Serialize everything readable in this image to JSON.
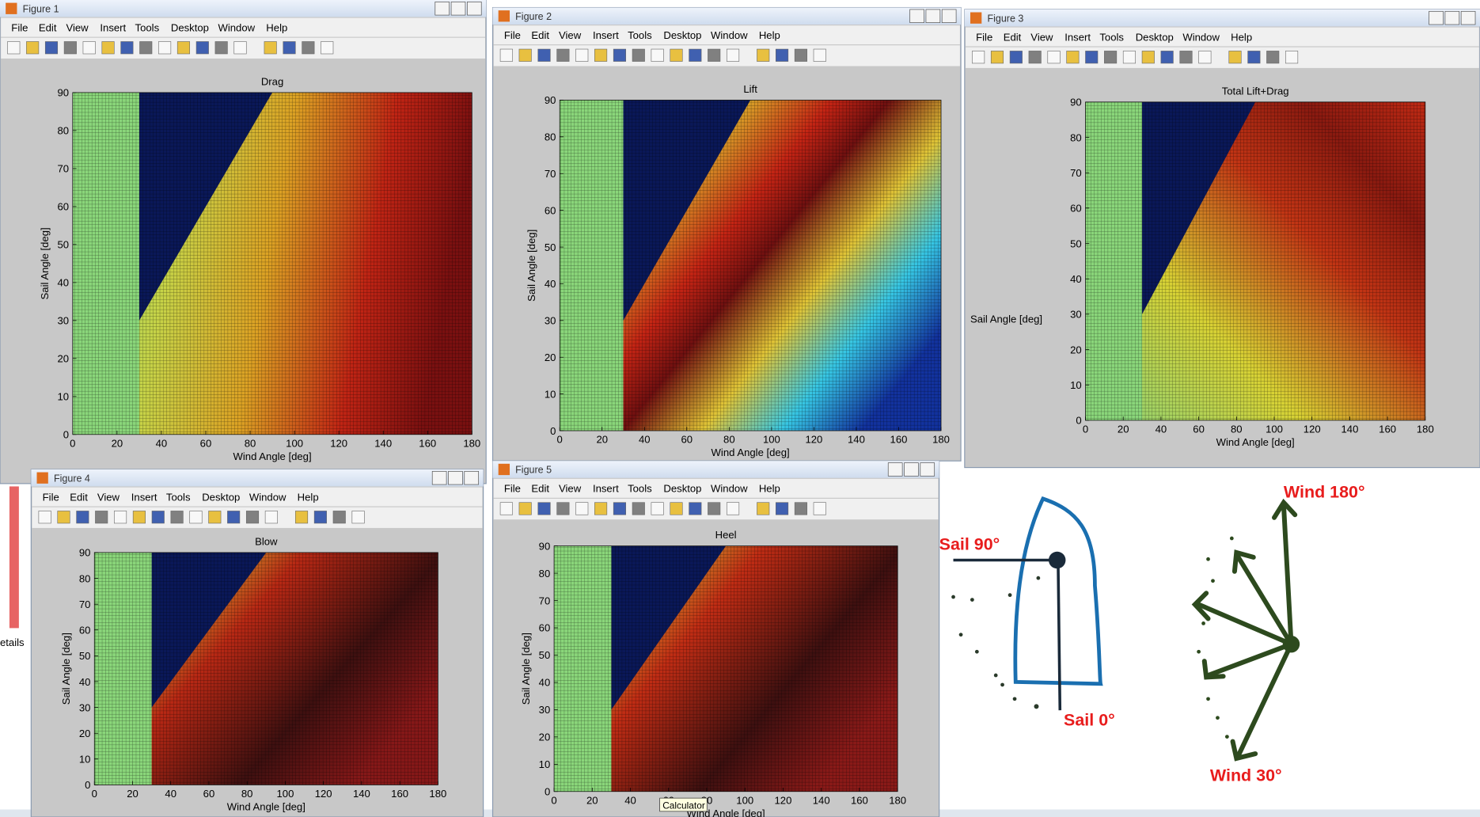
{
  "windows": [
    {
      "title": "Figure 1",
      "menu": [
        "File",
        "Edit",
        "View",
        "Insert",
        "Tools",
        "Desktop",
        "Window",
        "Help"
      ],
      "plot": {
        "title": "Drag",
        "xlabel": "Wind Angle [deg]",
        "ylabel": "Sail Angle [deg]",
        "xticks": [
          0,
          20,
          40,
          60,
          80,
          100,
          120,
          140,
          160,
          180
        ],
        "yticks": [
          0,
          10,
          20,
          30,
          40,
          50,
          60,
          70,
          80,
          90
        ]
      }
    },
    {
      "title": "Figure 2",
      "menu": [
        "File",
        "Edit",
        "View",
        "Insert",
        "Tools",
        "Desktop",
        "Window",
        "Help"
      ],
      "plot": {
        "title": "Lift",
        "xlabel": "Wind Angle [deg]",
        "ylabel": "Sail Angle [deg]",
        "xticks": [
          0,
          20,
          40,
          60,
          80,
          100,
          120,
          140,
          160,
          180
        ],
        "yticks": [
          0,
          10,
          20,
          30,
          40,
          50,
          60,
          70,
          80,
          90
        ]
      }
    },
    {
      "title": "Figure 3",
      "menu": [
        "File",
        "Edit",
        "View",
        "Insert",
        "Tools",
        "Desktop",
        "Window",
        "Help"
      ],
      "plot": {
        "title": "Total Lift+Drag",
        "xlabel": "Wind Angle [deg]",
        "ylabel": "Sail Angle [deg]",
        "xticks": [
          0,
          20,
          40,
          60,
          80,
          100,
          120,
          140,
          160,
          180
        ],
        "yticks": [
          0,
          10,
          20,
          30,
          40,
          50,
          60,
          70,
          80,
          90
        ]
      }
    },
    {
      "title": "Figure 4",
      "menu": [
        "File",
        "Edit",
        "View",
        "Insert",
        "Tools",
        "Desktop",
        "Window",
        "Help"
      ],
      "plot": {
        "title": "Blow",
        "xlabel": "Wind Angle [deg]",
        "ylabel": "Sail Angle [deg]",
        "xticks": [
          0,
          20,
          40,
          60,
          80,
          100,
          120,
          140,
          160,
          180
        ],
        "yticks": [
          0,
          10,
          20,
          30,
          40,
          50,
          60,
          70,
          80,
          90
        ]
      }
    },
    {
      "title": "Figure 5",
      "menu": [
        "File",
        "Edit",
        "View",
        "Insert",
        "Tools",
        "Desktop",
        "Window",
        "Help"
      ],
      "plot": {
        "title": "Heel",
        "xlabel": "Wind Angle [deg]",
        "ylabel": "Sail Angle [deg]",
        "xticks": [
          0,
          20,
          40,
          60,
          80,
          100,
          120,
          140,
          160,
          180
        ],
        "yticks": [
          0,
          10,
          20,
          30,
          40,
          50,
          60,
          70,
          80,
          90
        ]
      }
    }
  ],
  "sketch": {
    "sail_90": "Sail 90°",
    "sail_0": "Sail 0°",
    "wind_180": "Wind 180°",
    "wind_30": "Wind 30°"
  },
  "background": {
    "panel_label": "etails",
    "tooltip": "Calculator"
  }
}
